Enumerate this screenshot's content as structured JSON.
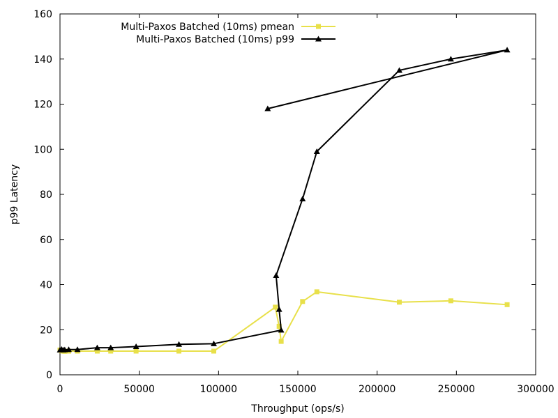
{
  "chart_data": {
    "type": "line",
    "title": "",
    "xlabel": "Throughput (ops/s)",
    "ylabel": "p99 Latency",
    "xlim": [
      0,
      300000
    ],
    "ylim": [
      0,
      160
    ],
    "x_ticks": [
      0,
      50000,
      100000,
      150000,
      200000,
      250000,
      300000
    ],
    "y_ticks": [
      0,
      20,
      40,
      60,
      80,
      100,
      120,
      140,
      160
    ],
    "grid": false,
    "legend_position": "top-left",
    "series": [
      {
        "name": "Multi-Paxos Batched (10ms) pmean",
        "color": "#e8e04a",
        "marker": "square",
        "points": [
          [
            0,
            11.0
          ],
          [
            1000,
            10.6
          ],
          [
            2000,
            10.5
          ],
          [
            3000,
            10.4
          ],
          [
            5500,
            10.5
          ],
          [
            11000,
            10.5
          ],
          [
            23500,
            10.5
          ],
          [
            32000,
            10.5
          ],
          [
            48000,
            10.5
          ],
          [
            75000,
            10.5
          ],
          [
            97000,
            10.5
          ],
          [
            135800,
            30.0
          ],
          [
            138200,
            21.5
          ],
          [
            139500,
            14.8
          ],
          [
            153000,
            32.5
          ],
          [
            162000,
            36.8
          ],
          [
            214000,
            32.2
          ],
          [
            246500,
            32.8
          ],
          [
            282000,
            31.1
          ]
        ]
      },
      {
        "name": "Multi-Paxos Batched (10ms) p99",
        "color": "#000000",
        "marker": "triangle",
        "points": [
          [
            0,
            11.0
          ],
          [
            1000,
            11.3
          ],
          [
            2000,
            11.0
          ],
          [
            3000,
            11.1
          ],
          [
            5500,
            11.2
          ],
          [
            11000,
            11.2
          ],
          [
            23500,
            12.0
          ],
          [
            32000,
            12.0
          ],
          [
            48000,
            12.5
          ],
          [
            75000,
            13.5
          ],
          [
            97000,
            13.8
          ],
          [
            139500,
            19.8
          ],
          [
            138200,
            29.0
          ],
          [
            136300,
            44.0
          ],
          [
            153000,
            78.0
          ],
          [
            162000,
            99.0
          ],
          [
            214000,
            135.0
          ],
          [
            246500,
            140.0
          ],
          [
            282000,
            144.0
          ],
          [
            131000,
            118.0
          ]
        ]
      }
    ]
  }
}
